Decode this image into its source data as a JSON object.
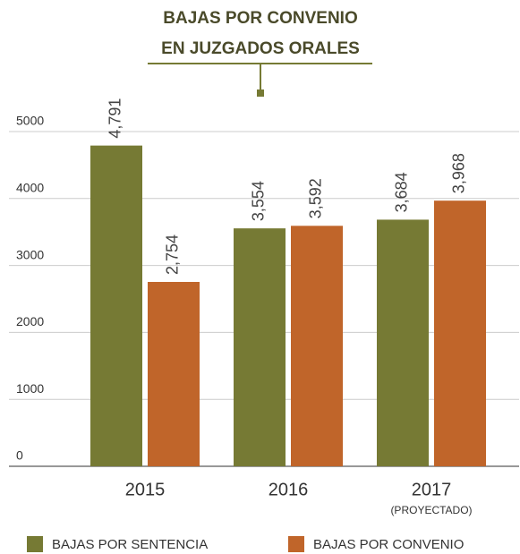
{
  "chart_data": {
    "type": "bar",
    "title": [
      "BAJAS POR CONVENIO",
      "EN JUZGADOS ORALES"
    ],
    "categories": [
      "2015",
      "2016",
      "2017"
    ],
    "annotations": [
      "(PROYECTADO)"
    ],
    "series": [
      {
        "name": "BAJAS POR SENTENCIA",
        "color": "#767a34",
        "values": [
          4791,
          3554,
          3684
        ],
        "value_labels": [
          "4,791",
          "3,554",
          "3,684"
        ]
      },
      {
        "name": "BAJAS POR CONVENIO",
        "color": "#c0652a",
        "values": [
          2754,
          3592,
          3968
        ],
        "value_labels": [
          "2,754",
          "3,592",
          "3,968"
        ]
      }
    ],
    "ylim": [
      0,
      5000
    ],
    "yticks": [
      0,
      1000,
      2000,
      3000,
      4000,
      5000
    ],
    "grid": true
  }
}
